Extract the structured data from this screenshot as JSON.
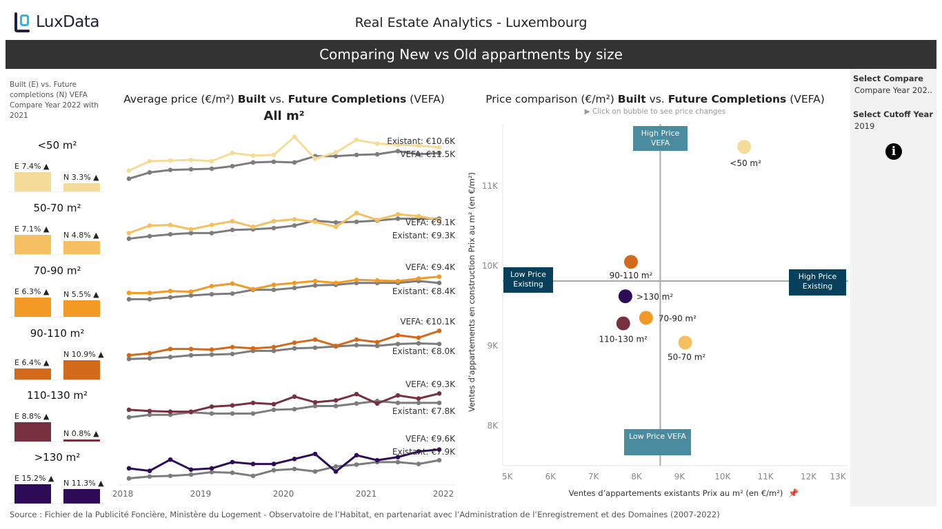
{
  "header": {
    "logo_text": "LuxData",
    "app_title": "Real Estate Analytics - Luxembourg",
    "banner": "Comparing New vs Old appartments by size"
  },
  "left_panel": {
    "note": "Built (E) vs. Future completions (N) VEFA Compare Year 2022 with 2021",
    "groups": [
      {
        "size": "<50 m²",
        "e_pct": 7.4,
        "n_pct": 3.3,
        "e_label": "E 7.4% ▲",
        "n_label": "N 3.3% ▲",
        "color": "#f4dc98"
      },
      {
        "size": "50-70 m²",
        "e_pct": 7.1,
        "n_pct": 4.8,
        "e_label": "E 7.1% ▲",
        "n_label": "N 4.8% ▲",
        "color": "#f4c062"
      },
      {
        "size": "70-90 m²",
        "e_pct": 6.3,
        "n_pct": 5.5,
        "e_label": "E 6.3% ▲",
        "n_label": "N 5.5% ▲",
        "color": "#f39a26"
      },
      {
        "size": "90-110 m²",
        "e_pct": 6.4,
        "n_pct": 10.9,
        "e_label": "E 6.4% ▲",
        "n_label": "N 10.9% ▲",
        "color": "#d2691b"
      },
      {
        "size": "110-130 m²",
        "e_pct": 8.8,
        "n_pct": 0.8,
        "e_label": "E 8.8% ▲",
        "n_label": "N 0.8% ▲",
        "color": "#76303f"
      },
      {
        "size": ">130 m²",
        "e_pct": 15.2,
        "n_pct": 11.3,
        "e_label": "E 15.2% ▲",
        "n_label": "N 11.3% ▲",
        "color": "#2e0b57"
      }
    ]
  },
  "line_chart": {
    "title_parts": [
      "Average price (€/m²) ",
      "Built",
      " vs. ",
      "Future Completions",
      " (VEFA)"
    ],
    "subtitle": "All m²",
    "x_ticks": [
      "2018",
      "2019",
      "2020",
      "2021",
      "2022"
    ],
    "existing_color": "#666666"
  },
  "chart_data": [
    {
      "type": "line",
      "x_unit": "quarter",
      "x": [
        "2018Q1",
        "2018Q2",
        "2018Q3",
        "2018Q4",
        "2019Q1",
        "2019Q2",
        "2019Q3",
        "2019Q4",
        "2020Q1",
        "2020Q2",
        "2020Q3",
        "2020Q4",
        "2021Q1",
        "2021Q2",
        "2021Q3",
        "2021Q4"
      ],
      "ylabel": "",
      "panels": [
        {
          "size": "<50 m²",
          "vefa_label": "VEFA: €11.5K",
          "existing_label": "Existant: €10.6K",
          "vefa": [
            7.8,
            9.3,
            9.4,
            9.5,
            9.3,
            10.6,
            10.2,
            10.3,
            13.2,
            9.7,
            10.7,
            12.7,
            12.1,
            11.9,
            11.8,
            11.5
          ],
          "existing": [
            6.5,
            7.5,
            7.9,
            8.0,
            8.1,
            8.5,
            9.1,
            9.2,
            9.1,
            10.1,
            10.1,
            10.3,
            10.4,
            10.9,
            10.4,
            10.6
          ]
        },
        {
          "size": "50-70 m²",
          "vefa_label": "VEFA: €9.1K",
          "existing_label": "Existant: €9.3K",
          "vefa": [
            7.0,
            8.2,
            8.3,
            7.6,
            8.3,
            8.9,
            8.0,
            8.9,
            9.2,
            8.8,
            8.0,
            10.2,
            9.1,
            10.0,
            9.7,
            9.1
          ],
          "existing": [
            6.1,
            6.5,
            6.8,
            7.0,
            7.0,
            7.5,
            7.6,
            7.8,
            8.2,
            9.0,
            8.7,
            8.8,
            9.0,
            9.3,
            9.3,
            9.3
          ]
        },
        {
          "size": "70-90 m²",
          "vefa_label": "VEFA: €9.4K",
          "existing_label": "Existant: €8.4K",
          "vefa": [
            6.8,
            6.8,
            7.1,
            7.0,
            7.9,
            8.3,
            7.4,
            8.1,
            8.4,
            8.7,
            8.4,
            8.9,
            8.8,
            8.7,
            9.1,
            9.4
          ],
          "existing": [
            5.8,
            5.8,
            6.1,
            6.4,
            6.6,
            6.7,
            7.3,
            7.3,
            7.6,
            8.0,
            8.1,
            8.4,
            8.4,
            8.4,
            8.7,
            8.4
          ]
        },
        {
          "size": "90-110 m²",
          "vefa_label": "VEFA: €10.1K",
          "existing_label": "Existant: €8.0K",
          "vefa": [
            6.2,
            6.5,
            7.2,
            7.2,
            7.1,
            7.5,
            7.3,
            7.5,
            8.2,
            8.7,
            7.7,
            8.7,
            8.3,
            9.4,
            9.0,
            10.1
          ],
          "existing": [
            5.6,
            5.7,
            5.9,
            6.2,
            6.3,
            6.4,
            6.9,
            6.9,
            7.3,
            7.4,
            7.6,
            7.8,
            7.7,
            8.0,
            8.1,
            8.0
          ]
        },
        {
          "size": "110-130 m²",
          "vefa_label": "VEFA: €9.3K",
          "existing_label": "Existant: €7.8K",
          "vefa": [
            6.7,
            6.5,
            6.4,
            6.4,
            7.2,
            7.4,
            7.8,
            7.6,
            8.8,
            7.9,
            8.2,
            9.2,
            7.7,
            9.0,
            8.5,
            9.3
          ],
          "existing": [
            5.5,
            5.9,
            5.9,
            6.3,
            6.1,
            6.1,
            6.1,
            6.7,
            6.8,
            7.3,
            7.3,
            7.7,
            8.1,
            7.8,
            7.8,
            7.8
          ]
        },
        {
          "size": ">130 m²",
          "vefa_label": "VEFA: €9.6K",
          "existing_label": "Existant: €7.9K",
          "vefa": [
            6.6,
            6.2,
            8.0,
            6.4,
            6.6,
            7.6,
            7.3,
            7.3,
            8.1,
            8.9,
            6.1,
            8.7,
            7.9,
            8.4,
            9.3,
            9.6
          ],
          "existing": [
            5.0,
            5.3,
            5.4,
            5.6,
            6.0,
            5.9,
            5.4,
            6.3,
            6.5,
            6.1,
            6.9,
            7.2,
            7.6,
            7.6,
            7.3,
            7.9
          ]
        }
      ]
    },
    {
      "type": "scatter",
      "title_parts": [
        "Price comparison (€/m²) ",
        "Built",
        " vs. ",
        "Future Completions",
        " (VEFA)"
      ],
      "hint": "▶ Click on bubble to see price changes",
      "xlabel": "Ventes d’appartements existants Prix au m² (en €/m²)",
      "ylabel": "Ventes d’appartements en construction Prix au m² (en €/m²)",
      "xlim": [
        5,
        13.1
      ],
      "ylim": [
        7.5,
        11.8
      ],
      "x_ticks": [
        "5K",
        "6K",
        "7K",
        "8K",
        "9K",
        "10K",
        "11K",
        "12K",
        "13K"
      ],
      "y_ticks": [
        "8K",
        "9K",
        "10K",
        "11K"
      ],
      "ref_x": 8.68,
      "ref_y": 9.81,
      "points": [
        {
          "label": "<50 m²",
          "x": 10.63,
          "y": 11.49,
          "color": "#f4dc98"
        },
        {
          "label": "90-110 m²",
          "x": 8.0,
          "y": 10.05,
          "color": "#d2691b"
        },
        {
          "label": ">130 m²",
          "x": 7.87,
          "y": 9.62,
          "color": "#2e0b57"
        },
        {
          "label": "70-90 m²",
          "x": 8.35,
          "y": 9.35,
          "color": "#f39a26"
        },
        {
          "label": "110-130 m²",
          "x": 7.82,
          "y": 9.28,
          "color": "#76303f"
        },
        {
          "label": "50-70 m²",
          "x": 9.26,
          "y": 9.04,
          "color": "#f4c062"
        }
      ],
      "quadrants": {
        "high_vefa": "High Price VEFA",
        "low_existing": "Low Price Existing",
        "high_existing": "High Price Existing",
        "low_vefa": "Low Price VEFA"
      }
    }
  ],
  "side_panel": {
    "compare_label": "Select Compare",
    "compare_value": "Compare Year 202..",
    "cutoff_label": "Select Cutoff Year",
    "cutoff_value": "2019",
    "info_icon": "info-icon"
  },
  "footer": {
    "source": "Source : Fichier de la Publicité Foncière, Ministère du Logement - Observatoire de l’Habitat, en partenariat avec l’Administration de l’Enregistrement et des Domaines (2007-2022)"
  }
}
